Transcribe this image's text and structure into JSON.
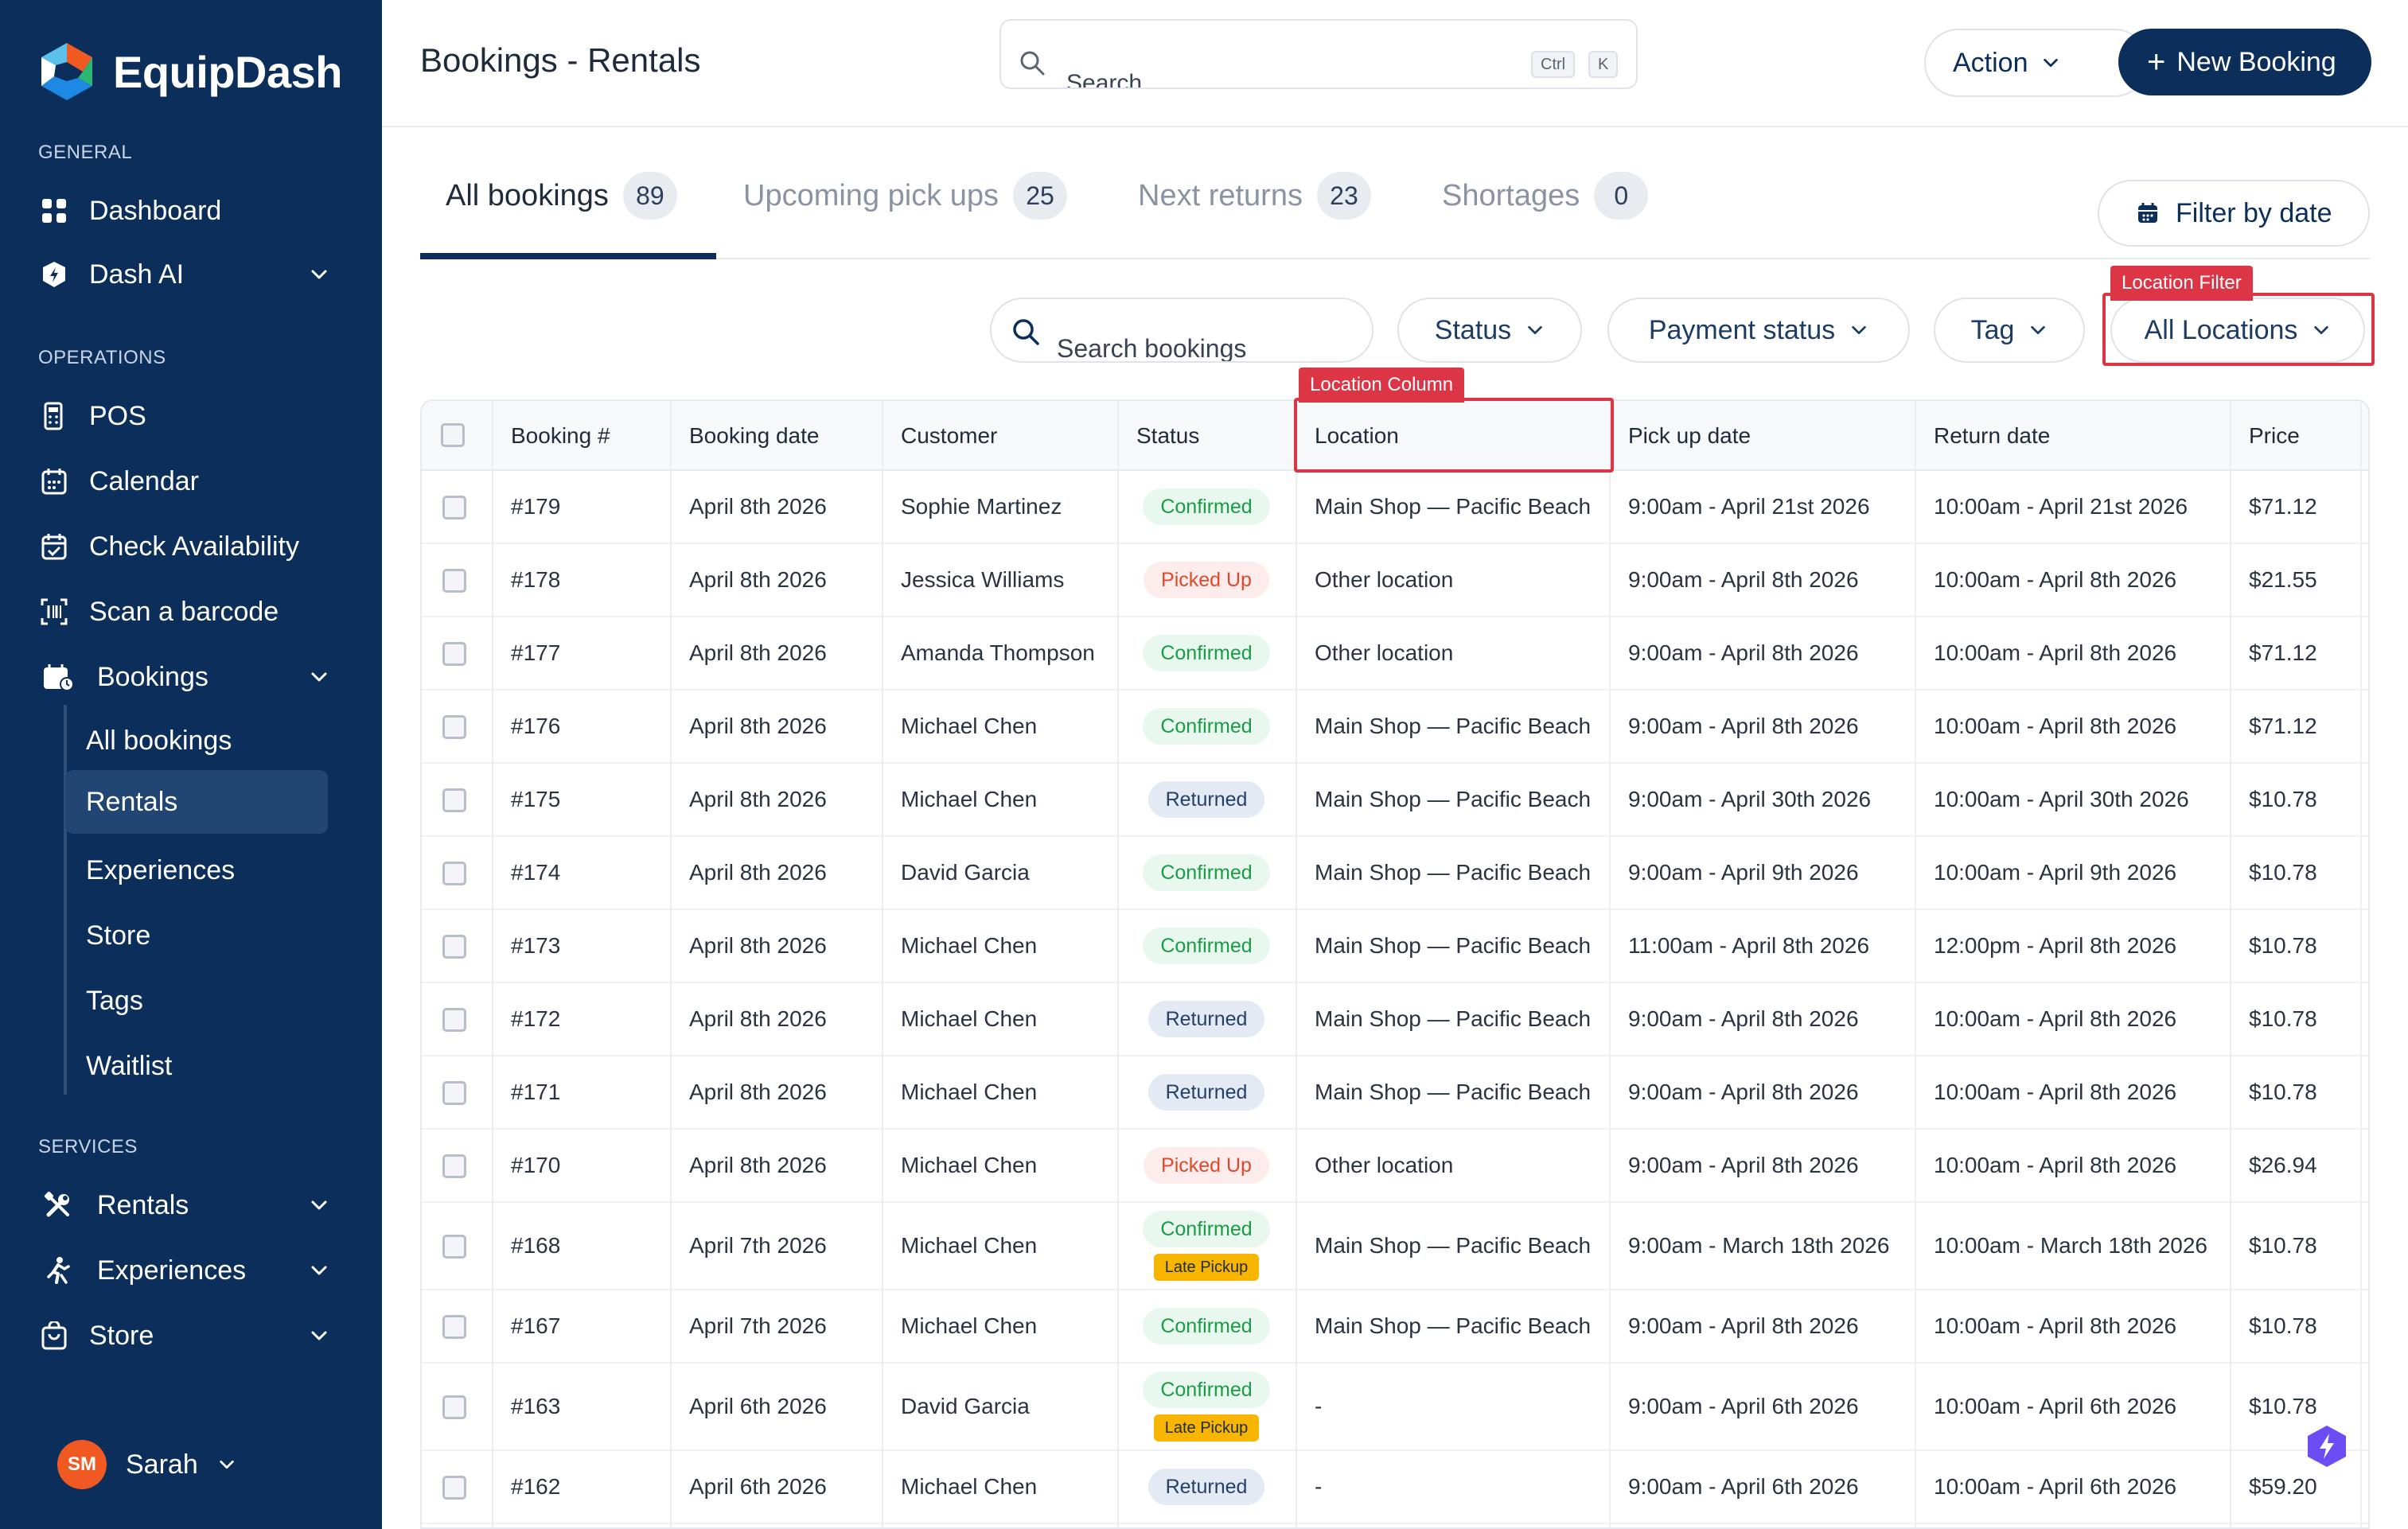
{
  "app": {
    "name": "EquipDash"
  },
  "sidebar": {
    "sections": {
      "general": "GENERAL",
      "operations": "OPERATIONS",
      "services": "SERVICES"
    },
    "general_items": [
      {
        "label": "Dashboard",
        "icon": "grid-icon"
      },
      {
        "label": "Dash AI",
        "icon": "shield-ai-icon"
      }
    ],
    "operation_items": [
      {
        "label": "POS",
        "icon": "pos-icon"
      },
      {
        "label": "Calendar",
        "icon": "calendar-icon"
      },
      {
        "label": "Check Availability",
        "icon": "calendar-check-icon"
      },
      {
        "label": "Scan a barcode",
        "icon": "barcode-icon"
      },
      {
        "label": "Bookings",
        "icon": "bookings-icon"
      }
    ],
    "bookings_sub": [
      "All bookings",
      "Rentals",
      "Experiences",
      "Store",
      "Tags",
      "Waitlist"
    ],
    "service_items": [
      {
        "label": "Rentals",
        "icon": "tools-icon"
      },
      {
        "label": "Experiences",
        "icon": "person-run-icon"
      },
      {
        "label": "Store",
        "icon": "store-icon"
      }
    ],
    "user": {
      "initials": "SM",
      "name": "Sarah"
    }
  },
  "header": {
    "title": "Bookings - Rentals",
    "search_text": "Search",
    "shortcut": [
      "Ctrl",
      "K"
    ],
    "action_label": "Action",
    "new_booking_label": "New Booking"
  },
  "tabs": [
    {
      "label": "All bookings",
      "count": "89"
    },
    {
      "label": "Upcoming pick ups",
      "count": "25"
    },
    {
      "label": "Next returns",
      "count": "23"
    },
    {
      "label": "Shortages",
      "count": "0"
    }
  ],
  "filter_by_date_label": "Filter by date",
  "filters": {
    "search_placeholder": "Search bookings",
    "status": "Status",
    "payment_status": "Payment status",
    "tag": "Tag",
    "location": "All Locations"
  },
  "annotations": {
    "location_filter": "Location Filter",
    "location_column": "Location Column"
  },
  "table": {
    "columns": [
      "Booking #",
      "Booking date",
      "Customer",
      "Status",
      "Location",
      "Pick up date",
      "Return date",
      "Price"
    ],
    "rows": [
      {
        "id": "#179",
        "date": "April 8th 2026",
        "customer": "Sophie Martinez",
        "status": "Confirmed",
        "late": "",
        "location": "Main Shop — Pacific Beach",
        "pickup": "9:00am - April 21st 2026",
        "return": "10:00am - April 21st 2026",
        "price": "$71.12"
      },
      {
        "id": "#178",
        "date": "April 8th 2026",
        "customer": "Jessica Williams",
        "status": "Picked Up",
        "late": "",
        "location": "Other location",
        "pickup": "9:00am - April 8th 2026",
        "return": "10:00am - April 8th 2026",
        "price": "$21.55"
      },
      {
        "id": "#177",
        "date": "April 8th 2026",
        "customer": "Amanda Thompson",
        "status": "Confirmed",
        "late": "",
        "location": "Other location",
        "pickup": "9:00am - April 8th 2026",
        "return": "10:00am - April 8th 2026",
        "price": "$71.12"
      },
      {
        "id": "#176",
        "date": "April 8th 2026",
        "customer": "Michael Chen",
        "status": "Confirmed",
        "late": "",
        "location": "Main Shop — Pacific Beach",
        "pickup": "9:00am - April 8th 2026",
        "return": "10:00am - April 8th 2026",
        "price": "$71.12"
      },
      {
        "id": "#175",
        "date": "April 8th 2026",
        "customer": "Michael Chen",
        "status": "Returned",
        "late": "",
        "location": "Main Shop — Pacific Beach",
        "pickup": "9:00am - April 30th 2026",
        "return": "10:00am - April 30th 2026",
        "price": "$10.78"
      },
      {
        "id": "#174",
        "date": "April 8th 2026",
        "customer": "David Garcia",
        "status": "Confirmed",
        "late": "",
        "location": "Main Shop — Pacific Beach",
        "pickup": "9:00am - April 9th 2026",
        "return": "10:00am - April 9th 2026",
        "price": "$10.78"
      },
      {
        "id": "#173",
        "date": "April 8th 2026",
        "customer": "Michael Chen",
        "status": "Confirmed",
        "late": "",
        "location": "Main Shop — Pacific Beach",
        "pickup": "11:00am - April 8th 2026",
        "return": "12:00pm - April 8th 2026",
        "price": "$10.78"
      },
      {
        "id": "#172",
        "date": "April 8th 2026",
        "customer": "Michael Chen",
        "status": "Returned",
        "late": "",
        "location": "Main Shop — Pacific Beach",
        "pickup": "9:00am - April 8th 2026",
        "return": "10:00am - April 8th 2026",
        "price": "$10.78"
      },
      {
        "id": "#171",
        "date": "April 8th 2026",
        "customer": "Michael Chen",
        "status": "Returned",
        "late": "",
        "location": "Main Shop — Pacific Beach",
        "pickup": "9:00am - April 8th 2026",
        "return": "10:00am - April 8th 2026",
        "price": "$10.78"
      },
      {
        "id": "#170",
        "date": "April 8th 2026",
        "customer": "Michael Chen",
        "status": "Picked Up",
        "late": "",
        "location": "Other location",
        "pickup": "9:00am - April 8th 2026",
        "return": "10:00am - April 8th 2026",
        "price": "$26.94"
      },
      {
        "id": "#168",
        "date": "April 7th 2026",
        "customer": "Michael Chen",
        "status": "Confirmed",
        "late": "Late Pickup",
        "location": "Main Shop — Pacific Beach",
        "pickup": "9:00am - March 18th 2026",
        "return": "10:00am - March 18th 2026",
        "price": "$10.78"
      },
      {
        "id": "#167",
        "date": "April 7th 2026",
        "customer": "Michael Chen",
        "status": "Confirmed",
        "late": "",
        "location": "Main Shop — Pacific Beach",
        "pickup": "9:00am - April 8th 2026",
        "return": "10:00am - April 8th 2026",
        "price": "$10.78"
      },
      {
        "id": "#163",
        "date": "April 6th 2026",
        "customer": "David Garcia",
        "status": "Confirmed",
        "late": "Late Pickup",
        "location": "-",
        "pickup": "9:00am - April 6th 2026",
        "return": "10:00am - April 6th 2026",
        "price": "$10.78"
      },
      {
        "id": "#162",
        "date": "April 6th 2026",
        "customer": "Michael Chen",
        "status": "Returned",
        "late": "",
        "location": "-",
        "pickup": "9:00am - April 6th 2026",
        "return": "10:00am - April 6th 2026",
        "price": "$59.20"
      }
    ]
  },
  "colors": {
    "sidebar_bg": "#0b2e5a",
    "accent": "#0b2e5a",
    "confirmed": "#1a9c46",
    "picked_up": "#e0482b",
    "returned": "#24406a",
    "late_pickup": "#f7b500",
    "annotation": "#dc3545"
  }
}
